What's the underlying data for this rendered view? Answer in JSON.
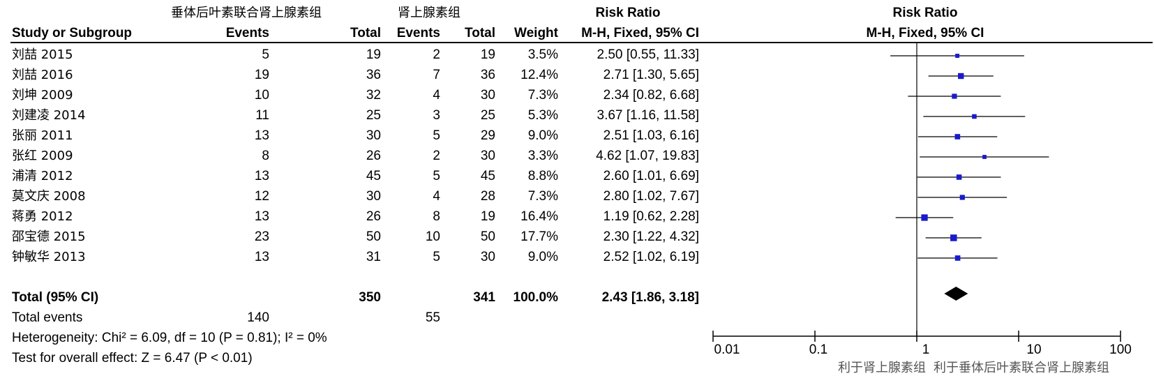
{
  "header": {
    "group_exp": "垂体后叶素联合肾上腺素组",
    "group_ctl": "肾上腺素组",
    "rr_title_table": "Risk Ratio",
    "rr_title_plot": "Risk Ratio",
    "col_study": "Study or Subgroup",
    "col_events_exp": "Events",
    "col_total_exp": "Total",
    "col_events_ctl": "Events",
    "col_total_ctl": "Total",
    "col_weight": "Weight",
    "col_method_table": "M-H, Fixed, 95% CI",
    "col_method_plot": "M-H, Fixed, 95% CI"
  },
  "studies": [
    {
      "name": "刘喆 2015",
      "ev_e": "5",
      "tot_e": "19",
      "ev_c": "2",
      "tot_c": "19",
      "weight": "3.5%",
      "ci_text": "2.50 [0.55, 11.33]"
    },
    {
      "name": "刘喆 2016",
      "ev_e": "19",
      "tot_e": "36",
      "ev_c": "7",
      "tot_c": "36",
      "weight": "12.4%",
      "ci_text": "2.71 [1.30, 5.65]"
    },
    {
      "name": "刘坤 2009",
      "ev_e": "10",
      "tot_e": "32",
      "ev_c": "4",
      "tot_c": "30",
      "weight": "7.3%",
      "ci_text": "2.34 [0.82, 6.68]"
    },
    {
      "name": "刘建凌 2014",
      "ev_e": "11",
      "tot_e": "25",
      "ev_c": "3",
      "tot_c": "25",
      "weight": "5.3%",
      "ci_text": "3.67 [1.16, 11.58]"
    },
    {
      "name": "张丽 2011",
      "ev_e": "13",
      "tot_e": "30",
      "ev_c": "5",
      "tot_c": "29",
      "weight": "9.0%",
      "ci_text": "2.51 [1.03, 6.16]"
    },
    {
      "name": "张红 2009",
      "ev_e": "8",
      "tot_e": "26",
      "ev_c": "2",
      "tot_c": "30",
      "weight": "3.3%",
      "ci_text": "4.62 [1.07, 19.83]"
    },
    {
      "name": "浦清 2012",
      "ev_e": "13",
      "tot_e": "45",
      "ev_c": "5",
      "tot_c": "45",
      "weight": "8.8%",
      "ci_text": "2.60 [1.01, 6.69]"
    },
    {
      "name": "莫文庆 2008",
      "ev_e": "12",
      "tot_e": "30",
      "ev_c": "4",
      "tot_c": "28",
      "weight": "7.3%",
      "ci_text": "2.80 [1.02, 7.67]"
    },
    {
      "name": "蒋勇 2012",
      "ev_e": "13",
      "tot_e": "26",
      "ev_c": "8",
      "tot_c": "19",
      "weight": "16.4%",
      "ci_text": "1.19 [0.62, 2.28]"
    },
    {
      "name": "邵宝德 2015",
      "ev_e": "23",
      "tot_e": "50",
      "ev_c": "10",
      "tot_c": "50",
      "weight": "17.7%",
      "ci_text": "2.30 [1.22, 4.32]"
    },
    {
      "name": "钟敏华 2013",
      "ev_e": "13",
      "tot_e": "31",
      "ev_c": "5",
      "tot_c": "30",
      "weight": "9.0%",
      "ci_text": "2.52 [1.02, 6.19]"
    }
  ],
  "total": {
    "label": "Total (95% CI)",
    "tot_e": "350",
    "tot_c": "341",
    "weight": "100.0%",
    "ci_text": "2.43 [1.86, 3.18]"
  },
  "total_events": {
    "label": "Total events",
    "ev_e": "140",
    "ev_c": "55"
  },
  "heterogeneity": "Heterogeneity: Chi² = 6.09, df = 10 (P = 0.81); I² = 0%",
  "overall_effect": "Test for overall effect: Z = 6.47 (P < 0.01)",
  "axis": {
    "scale": "log",
    "ticks": [
      "0.01",
      "0.1",
      "1",
      "10",
      "100"
    ],
    "favours_left": "利于肾上腺素组",
    "favours_right": "利于垂体后叶素联合肾上腺素组"
  },
  "colors": {
    "study_marker": "#1a1acc",
    "diamond": "#000000",
    "line": "#000000"
  },
  "chart_data": {
    "type": "forest",
    "xscale": "log",
    "xlim": [
      0.01,
      100
    ],
    "null_line": 1,
    "points": [
      {
        "study": "刘喆 2015",
        "rr": 2.5,
        "lo": 0.55,
        "hi": 11.33,
        "weight": 3.5
      },
      {
        "study": "刘喆 2016",
        "rr": 2.71,
        "lo": 1.3,
        "hi": 5.65,
        "weight": 12.4
      },
      {
        "study": "刘坤 2009",
        "rr": 2.34,
        "lo": 0.82,
        "hi": 6.68,
        "weight": 7.3
      },
      {
        "study": "刘建凌 2014",
        "rr": 3.67,
        "lo": 1.16,
        "hi": 11.58,
        "weight": 5.3
      },
      {
        "study": "张丽 2011",
        "rr": 2.51,
        "lo": 1.03,
        "hi": 6.16,
        "weight": 9.0
      },
      {
        "study": "张红 2009",
        "rr": 4.62,
        "lo": 1.07,
        "hi": 19.83,
        "weight": 3.3
      },
      {
        "study": "浦清 2012",
        "rr": 2.6,
        "lo": 1.01,
        "hi": 6.69,
        "weight": 8.8
      },
      {
        "study": "莫文庆 2008",
        "rr": 2.8,
        "lo": 1.02,
        "hi": 7.67,
        "weight": 7.3
      },
      {
        "study": "蒋勇 2012",
        "rr": 1.19,
        "lo": 0.62,
        "hi": 2.28,
        "weight": 16.4
      },
      {
        "study": "邵宝德 2015",
        "rr": 2.3,
        "lo": 1.22,
        "hi": 4.32,
        "weight": 17.7
      },
      {
        "study": "钟敏华 2013",
        "rr": 2.52,
        "lo": 1.02,
        "hi": 6.19,
        "weight": 9.0
      }
    ],
    "pooled": {
      "rr": 2.43,
      "lo": 1.86,
      "hi": 3.18
    }
  }
}
